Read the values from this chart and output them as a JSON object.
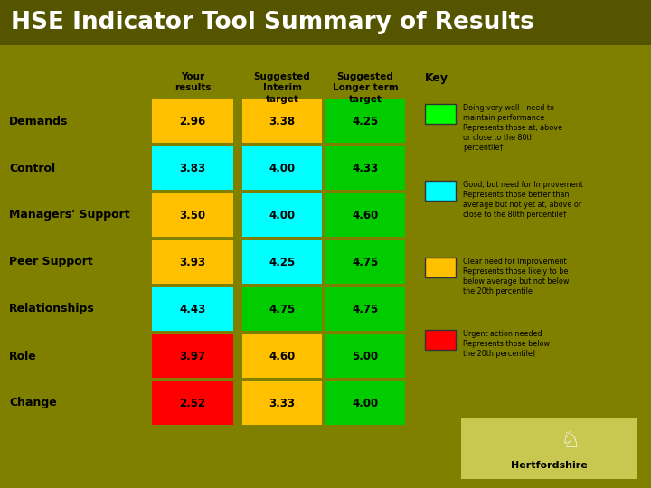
{
  "title": "HSE Indicator Tool Summary of Results",
  "bg_color": "#808000",
  "title_bg_color": "#555500",
  "title_color": "#ffffff",
  "rows": [
    "Demands",
    "Control",
    "Managers' Support",
    "Peer Support",
    "Relationships",
    "Role",
    "Change"
  ],
  "col_headers": [
    "Your\nresults",
    "Suggested\nInterim\ntarget",
    "Suggested\nLonger term\ntarget"
  ],
  "values": [
    [
      2.96,
      3.38,
      4.25
    ],
    [
      3.83,
      4.0,
      4.33
    ],
    [
      3.5,
      4.0,
      4.6
    ],
    [
      3.93,
      4.25,
      4.75
    ],
    [
      4.43,
      4.75,
      4.75
    ],
    [
      3.97,
      4.6,
      5.0
    ],
    [
      2.52,
      3.33,
      4.0
    ]
  ],
  "cell_colors": [
    [
      "#FFC000",
      "#FFC000",
      "#00CC00"
    ],
    [
      "#00FFFF",
      "#00FFFF",
      "#00CC00"
    ],
    [
      "#FFC000",
      "#00FFFF",
      "#00CC00"
    ],
    [
      "#FFC000",
      "#00FFFF",
      "#00CC00"
    ],
    [
      "#00FFFF",
      "#00CC00",
      "#00CC00"
    ],
    [
      "#FF0000",
      "#FFC000",
      "#00CC00"
    ],
    [
      "#FF0000",
      "#FFC000",
      "#00CC00"
    ]
  ],
  "key_title": "Key",
  "key_items": [
    {
      "color": "#00FF00",
      "text": "Doing very well - need to\nmaintain performance\nRepresents those at, above\nor close to the 80th\npercentile†"
    },
    {
      "color": "#00FFFF",
      "text": "Good, but need for Improvement\nRepresents those better than\naverage but not yet at, above or\nclose to the 80th percentile†"
    },
    {
      "color": "#FFC000",
      "text": "Clear need for Improvement\nRepresents those likely to be\nbelow average but not below\nthe 20th percentile"
    },
    {
      "color": "#FF0000",
      "text": "Urgent action needed\nRepresents those below\nthe 20th percentile†"
    }
  ],
  "hertfordshire_text": "Hertfordshire"
}
